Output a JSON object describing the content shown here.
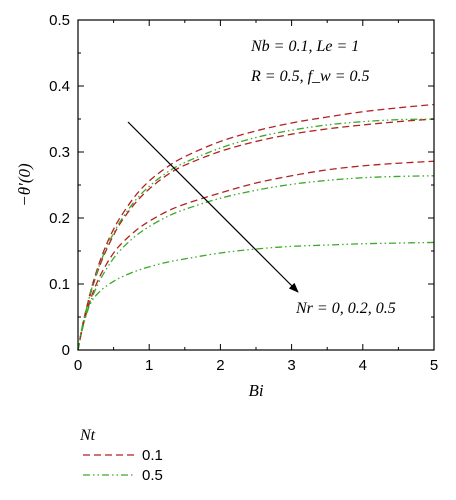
{
  "chart_data": {
    "type": "line",
    "xlabel": "Bi",
    "ylabel": "−θ′(0)",
    "xlim": [
      0,
      5
    ],
    "ylim": [
      0,
      0.5
    ],
    "xticks": [
      "0",
      "1",
      "2",
      "3",
      "4",
      "5"
    ],
    "yticks": [
      "0",
      "0.1",
      "0.2",
      "0.3",
      "0.4",
      "0.5"
    ],
    "grid": false,
    "annotations": {
      "params_line1": "Nb = 0.1, Le = 1",
      "params_line2": "R = 0.5, f_w = 0.5",
      "arrow_label": "Nr = 0, 0.2, 0.5"
    },
    "legend": {
      "title": "Nt",
      "position": "below",
      "entries": [
        {
          "label": "0.1",
          "color": "#b22222",
          "style": "dashed"
        },
        {
          "label": "0.5",
          "color": "#3caa28",
          "style": "dash-dot-dot"
        }
      ]
    },
    "x": [
      0,
      0.05,
      0.1,
      0.2,
      0.3,
      0.4,
      0.5,
      0.6,
      0.8,
      1.0,
      1.25,
      1.5,
      2.0,
      2.5,
      3.0,
      3.5,
      4.0,
      4.5,
      5.0
    ],
    "series": [
      {
        "legend": "0.1",
        "Nr": "0",
        "values": [
          0,
          0.03,
          0.055,
          0.098,
          0.132,
          0.16,
          0.183,
          0.202,
          0.233,
          0.256,
          0.277,
          0.293,
          0.316,
          0.332,
          0.344,
          0.353,
          0.361,
          0.367,
          0.372
        ]
      },
      {
        "legend": "0.1",
        "Nr": "0.2",
        "values": [
          0,
          0.029,
          0.053,
          0.094,
          0.126,
          0.152,
          0.174,
          0.193,
          0.222,
          0.244,
          0.265,
          0.28,
          0.301,
          0.316,
          0.327,
          0.335,
          0.341,
          0.346,
          0.35
        ]
      },
      {
        "legend": "0.1",
        "Nr": "0.5",
        "values": [
          0,
          0.027,
          0.049,
          0.084,
          0.11,
          0.13,
          0.147,
          0.16,
          0.18,
          0.195,
          0.21,
          0.221,
          0.238,
          0.253,
          0.264,
          0.273,
          0.279,
          0.283,
          0.286
        ]
      },
      {
        "legend": "0.5",
        "Nr": "0",
        "values": [
          0,
          0.029,
          0.054,
          0.096,
          0.128,
          0.155,
          0.177,
          0.196,
          0.226,
          0.248,
          0.269,
          0.284,
          0.306,
          0.322,
          0.333,
          0.341,
          0.346,
          0.349,
          0.35
        ]
      },
      {
        "legend": "0.5",
        "Nr": "0.2",
        "values": [
          0,
          0.026,
          0.047,
          0.08,
          0.104,
          0.123,
          0.139,
          0.152,
          0.172,
          0.187,
          0.202,
          0.213,
          0.23,
          0.242,
          0.251,
          0.257,
          0.261,
          0.263,
          0.264
        ]
      },
      {
        "legend": "0.5",
        "Nr": "0.5",
        "values": [
          0,
          0.03,
          0.052,
          0.075,
          0.088,
          0.097,
          0.104,
          0.11,
          0.119,
          0.126,
          0.133,
          0.138,
          0.147,
          0.153,
          0.157,
          0.159,
          0.161,
          0.162,
          0.163
        ]
      }
    ]
  }
}
